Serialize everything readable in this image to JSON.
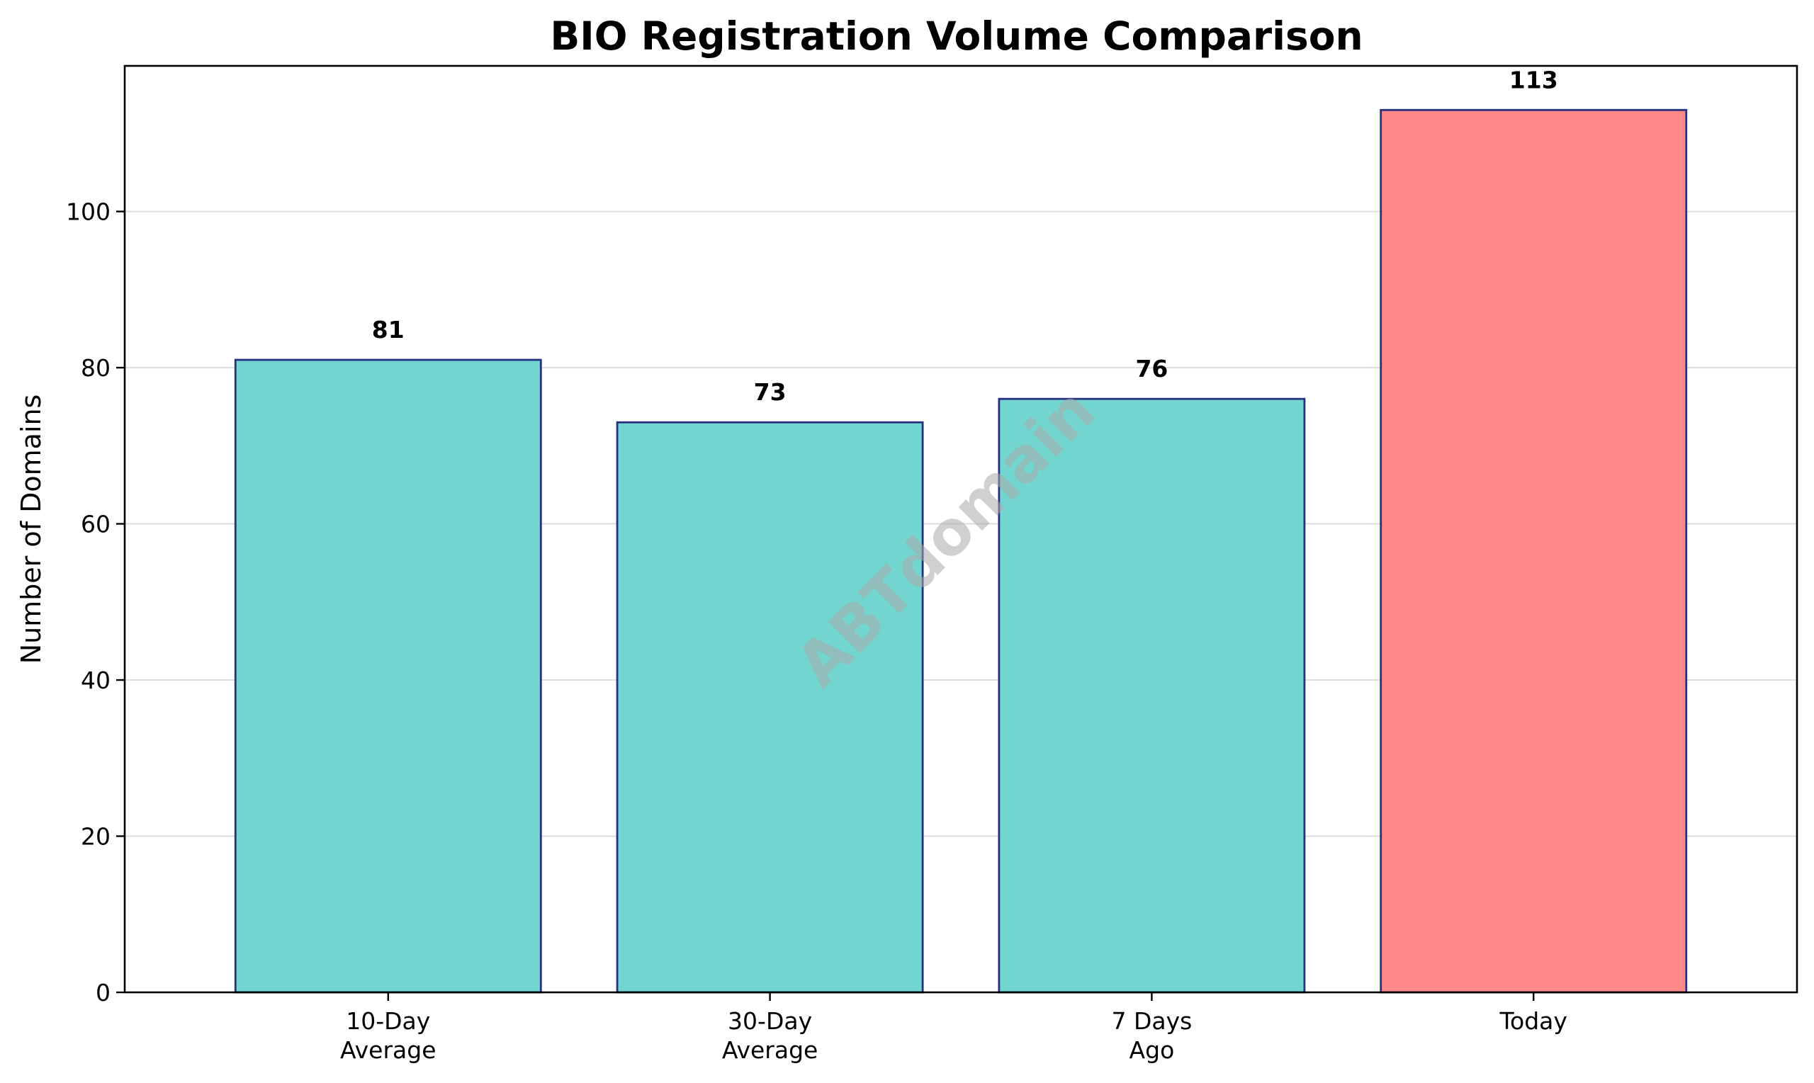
{
  "chart_data": {
    "type": "bar",
    "title": "BIO Registration Volume Comparison",
    "xlabel": "",
    "ylabel": "Number of Domains",
    "categories": [
      "10-Day\nAverage",
      "30-Day\nAverage",
      "7 Days\nAgo",
      "Today"
    ],
    "values": [
      81,
      73,
      76,
      113
    ],
    "value_labels": [
      "81",
      "73",
      "76",
      "113"
    ],
    "bar_colors": [
      "#73d5cf",
      "#73d5cf",
      "#73d5cf",
      "#ff8888"
    ],
    "edge_color": "#26317f",
    "ylim": [
      0,
      118.65
    ],
    "yticks": [
      0,
      20,
      40,
      60,
      80,
      100
    ],
    "grid": "y",
    "legend": "none",
    "watermark": "ABTdomain"
  }
}
